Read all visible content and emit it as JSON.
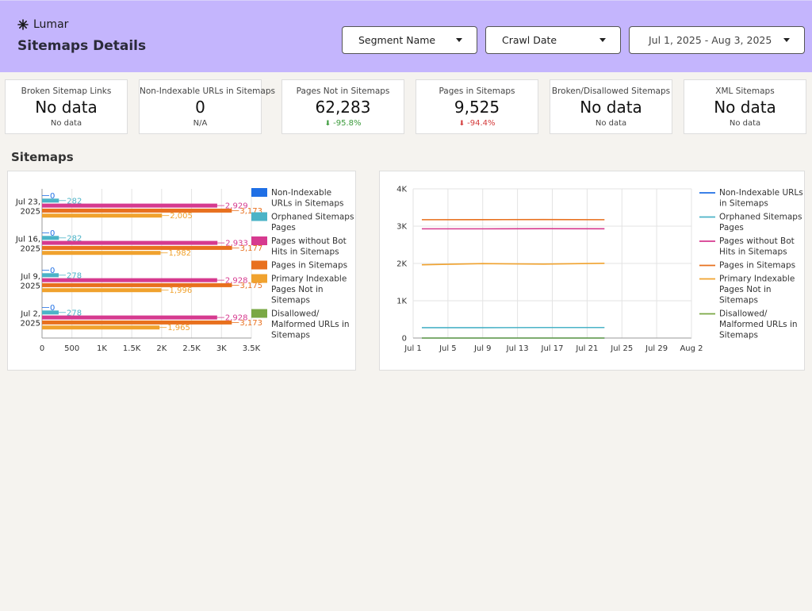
{
  "header": {
    "brand": "Lumar",
    "title": "Sitemaps Details",
    "segment_dropdown": "Segment Name",
    "crawl_dropdown": "Crawl Date",
    "date_range": "Jul 1, 2025 - Aug 3, 2025"
  },
  "kpis": [
    {
      "label": "Broken Sitemap Links",
      "value": "No data",
      "sub": "No data"
    },
    {
      "label": "Non-Indexable URLs in Sitemaps",
      "value": "0",
      "sub": "N/A"
    },
    {
      "label": "Pages Not in Sitemaps",
      "value": "62,283",
      "sub": "-95.8%",
      "arrow": "⬇"
    },
    {
      "label": "Pages in Sitemaps",
      "value": "9,525",
      "sub": "-94.4%",
      "arrow": "⬇"
    },
    {
      "label": "Broken/Disallowed Sitemaps",
      "value": "No data",
      "sub": "No data"
    },
    {
      "label": "XML Sitemaps",
      "value": "No data",
      "sub": "No data"
    }
  ],
  "section_title": "Sitemaps",
  "colors": {
    "blue": "#1f6fe5",
    "teal": "#4bb3c7",
    "pink": "#d63a8f",
    "orange": "#e8701e",
    "yellow": "#f0a22e",
    "green": "#7aa844"
  },
  "chart_data": [
    {
      "type": "bar",
      "orientation": "horizontal",
      "categories": [
        "Jul 23,|2025",
        "Jul 16,|2025",
        "Jul 9,|2025",
        "Jul 2,|2025"
      ],
      "xlim": [
        0,
        3500
      ],
      "xticks": [
        "0",
        "500",
        "1K",
        "1.5K",
        "2K",
        "2.5K",
        "3K",
        "3.5K"
      ],
      "series": [
        {
          "name": "Non-Indexable URLs in Sitemaps",
          "color": "#1f6fe5",
          "values": [
            0,
            0,
            0,
            0
          ],
          "labels": [
            "0",
            "0",
            "0",
            "0"
          ]
        },
        {
          "name": "Orphaned Sitemaps Pages",
          "color": "#4bb3c7",
          "values": [
            282,
            282,
            278,
            278
          ],
          "labels": [
            "282",
            "282",
            "278",
            "278"
          ]
        },
        {
          "name": "Pages without Bot Hits in Sitemaps",
          "color": "#d63a8f",
          "values": [
            2929,
            2933,
            2928,
            2928
          ],
          "labels": [
            "2,929",
            "2,933",
            "2,928",
            "2,928"
          ]
        },
        {
          "name": "Pages in Sitemaps",
          "color": "#e8701e",
          "values": [
            3173,
            3177,
            3175,
            3173
          ],
          "labels": [
            "3,173",
            "3,177",
            "3,175",
            "3,173"
          ]
        },
        {
          "name": "Primary Indexable Pages Not in Sitemaps",
          "color": "#f0a22e",
          "values": [
            2005,
            1982,
            1996,
            1965
          ],
          "labels": [
            "2,005",
            "1,982",
            "1,996",
            "1,965"
          ]
        },
        {
          "name": "Disallowed/ Malformed URLs in Sitemaps",
          "color": "#7aa844",
          "values": [
            0,
            0,
            0,
            0
          ],
          "labels": [
            "",
            "",
            "",
            ""
          ]
        }
      ],
      "legend": [
        {
          "lines": [
            "Non-Indexable",
            "URLs in Sitemaps"
          ],
          "color": "#1f6fe5"
        },
        {
          "lines": [
            "Orphaned Sitemaps",
            "Pages"
          ],
          "color": "#4bb3c7"
        },
        {
          "lines": [
            "Pages without Bot",
            "Hits in Sitemaps"
          ],
          "color": "#d63a8f"
        },
        {
          "lines": [
            "Pages in Sitemaps"
          ],
          "color": "#e8701e"
        },
        {
          "lines": [
            "Primary Indexable",
            "Pages Not in",
            "Sitemaps"
          ],
          "color": "#f0a22e"
        },
        {
          "lines": [
            "Disallowed/",
            "Malformed URLs in",
            "Sitemaps"
          ],
          "color": "#7aa844"
        }
      ]
    },
    {
      "type": "line",
      "xlim_days": [
        1,
        33
      ],
      "ylim": [
        0,
        4000
      ],
      "xticks": [
        {
          "label": "Jul 1",
          "day": 1
        },
        {
          "label": "Jul 5",
          "day": 5
        },
        {
          "label": "Jul 9",
          "day": 9
        },
        {
          "label": "Jul 13",
          "day": 13
        },
        {
          "label": "Jul 17",
          "day": 17
        },
        {
          "label": "Jul 21",
          "day": 21
        },
        {
          "label": "Jul 25",
          "day": 25
        },
        {
          "label": "Jul 29",
          "day": 29
        },
        {
          "label": "Aug 2",
          "day": 33
        }
      ],
      "yticks": [
        {
          "label": "0",
          "value": 0
        },
        {
          "label": "1K",
          "value": 1000
        },
        {
          "label": "2K",
          "value": 2000
        },
        {
          "label": "3K",
          "value": 3000
        },
        {
          "label": "4K",
          "value": 4000
        }
      ],
      "x_days": [
        2,
        9,
        16,
        23
      ],
      "series": [
        {
          "name": "Non-Indexable URLs in Sitemaps",
          "color": "#1f6fe5",
          "values": [
            0,
            0,
            0,
            0
          ]
        },
        {
          "name": "Orphaned Sitemaps Pages",
          "color": "#4bb3c7",
          "values": [
            278,
            278,
            282,
            282
          ]
        },
        {
          "name": "Pages without Bot Hits in Sitemaps",
          "color": "#d63a8f",
          "values": [
            2928,
            2928,
            2933,
            2929
          ]
        },
        {
          "name": "Pages in Sitemaps",
          "color": "#e8701e",
          "values": [
            3173,
            3175,
            3177,
            3173
          ]
        },
        {
          "name": "Primary Indexable Pages Not in Sitemaps",
          "color": "#f0a22e",
          "values": [
            1965,
            1996,
            1982,
            2005
          ]
        },
        {
          "name": "Disallowed/ Malformed URLs in Sitemaps",
          "color": "#7aa844",
          "values": [
            0,
            0,
            0,
            0
          ]
        }
      ],
      "legend": [
        {
          "lines": [
            "Non-Indexable URLs",
            "in Sitemaps"
          ],
          "color": "#1f6fe5"
        },
        {
          "lines": [
            "Orphaned Sitemaps",
            "Pages"
          ],
          "color": "#4bb3c7"
        },
        {
          "lines": [
            "Pages without Bot",
            "Hits in Sitemaps"
          ],
          "color": "#d63a8f"
        },
        {
          "lines": [
            "Pages in Sitemaps"
          ],
          "color": "#e8701e"
        },
        {
          "lines": [
            "Primary Indexable",
            "Pages Not in",
            "Sitemaps"
          ],
          "color": "#f0a22e"
        },
        {
          "lines": [
            "Disallowed/",
            "Malformed URLs in",
            "Sitemaps"
          ],
          "color": "#7aa844"
        }
      ]
    }
  ]
}
